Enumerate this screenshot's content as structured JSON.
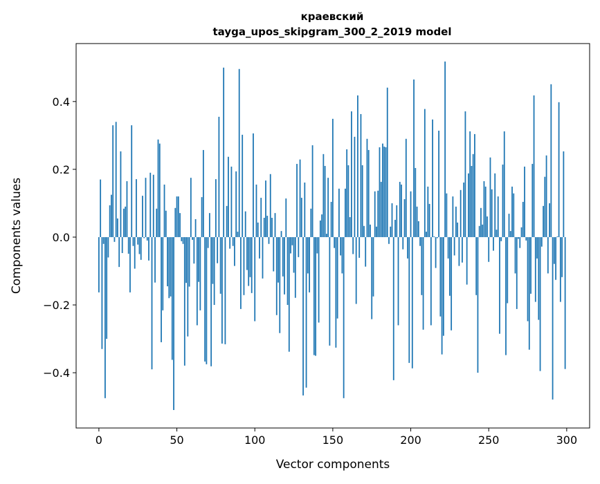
{
  "chart_data": {
    "type": "bar",
    "title": "краевский",
    "subtitle": "tayga_upos_skipgram_300_2_2019 model",
    "xlabel": "Vector components",
    "ylabel": "Components values",
    "xlim": [
      -14.6,
      314.7
    ],
    "ylim": [
      -0.563,
      0.571
    ],
    "xticks": [
      0,
      50,
      100,
      150,
      200,
      250,
      300
    ],
    "xtick_labels": [
      "0",
      "50",
      "100",
      "150",
      "200",
      "250",
      "300"
    ],
    "yticks": [
      -0.4,
      -0.2,
      0.0,
      0.2,
      0.4
    ],
    "ytick_labels": [
      "−0.4",
      "−0.2",
      "0.0",
      "0.2",
      "0.4"
    ],
    "grid": false,
    "bar_color": "#1f77b4",
    "values": [
      -0.163,
      0.17,
      -0.33,
      -0.02,
      -0.475,
      -0.3,
      -0.06,
      0.094,
      0.125,
      0.33,
      -0.014,
      0.34,
      0.055,
      -0.088,
      0.253,
      -0.047,
      0.084,
      0.09,
      0.165,
      -0.049,
      -0.163,
      0.33,
      -0.026,
      -0.093,
      0.171,
      -0.022,
      -0.05,
      -0.067,
      0.122,
      -0.003,
      0.175,
      -0.01,
      -0.069,
      0.19,
      -0.39,
      0.184,
      -0.134,
      0.084,
      0.288,
      0.276,
      -0.31,
      -0.216,
      0.155,
      0.078,
      -0.145,
      -0.18,
      -0.175,
      -0.362,
      -0.51,
      0.086,
      0.12,
      0.12,
      0.071,
      -0.012,
      -0.02,
      -0.379,
      -0.135,
      -0.293,
      -0.146,
      0.175,
      -0.008,
      -0.078,
      0.053,
      -0.26,
      -0.132,
      -0.216,
      0.118,
      0.257,
      -0.367,
      -0.375,
      -0.032,
      0.071,
      -0.381,
      -0.138,
      -0.2,
      0.171,
      -0.077,
      0.355,
      -0.167,
      -0.314,
      0.5,
      -0.316,
      0.092,
      0.237,
      -0.034,
      0.208,
      -0.026,
      -0.085,
      0.194,
      0.016,
      0.496,
      -0.212,
      0.302,
      -0.171,
      0.076,
      -0.097,
      -0.144,
      -0.118,
      -0.165,
      0.306,
      -0.248,
      0.155,
      0.043,
      -0.063,
      0.116,
      -0.122,
      0.057,
      0.167,
      0.063,
      -0.02,
      0.186,
      0.057,
      -0.101,
      0.071,
      -0.23,
      -0.134,
      -0.283,
      0.018,
      -0.116,
      -0.169,
      0.114,
      -0.2,
      -0.338,
      -0.048,
      -0.024,
      -0.105,
      -0.179,
      0.216,
      -0.059,
      0.229,
      0.116,
      -0.467,
      0.161,
      -0.444,
      -0.107,
      -0.163,
      0.084,
      0.271,
      -0.348,
      -0.35,
      -0.048,
      -0.252,
      0.049,
      0.067,
      0.245,
      0.21,
      0.01,
      0.175,
      -0.32,
      0.104,
      0.349,
      -0.032,
      -0.326,
      -0.24,
      0.143,
      -0.054,
      -0.107,
      -0.475,
      0.143,
      0.259,
      0.212,
      0.059,
      0.371,
      -0.05,
      0.296,
      -0.197,
      0.418,
      -0.061,
      0.363,
      0.212,
      0.033,
      -0.087,
      0.29,
      0.257,
      0.037,
      -0.242,
      -0.175,
      0.135,
      0.031,
      0.137,
      0.265,
      0.163,
      0.276,
      0.267,
      0.265,
      0.441,
      -0.02,
      0.031,
      0.1,
      -0.422,
      0.051,
      0.094,
      -0.26,
      0.163,
      0.155,
      -0.036,
      0.112,
      0.29,
      -0.063,
      -0.371,
      0.135,
      -0.387,
      0.465,
      0.204,
      0.09,
      0.047,
      -0.026,
      -0.171,
      -0.273,
      0.378,
      0.016,
      0.149,
      0.098,
      -0.26,
      0.347,
      0.002,
      -0.091,
      -0.003,
      0.314,
      -0.234,
      -0.346,
      -0.291,
      0.518,
      0.129,
      -0.063,
      -0.173,
      -0.275,
      0.12,
      -0.054,
      0.09,
      0.043,
      -0.085,
      0.139,
      -0.075,
      0.161,
      0.371,
      -0.14,
      0.188,
      0.312,
      0.21,
      0.245,
      0.304,
      -0.171,
      -0.4,
      0.033,
      0.086,
      0.037,
      0.165,
      0.149,
      0.061,
      -0.073,
      0.235,
      0.141,
      -0.04,
      0.188,
      0.022,
      0.12,
      -0.285,
      -0.012,
      0.214,
      0.312,
      -0.348,
      -0.195,
      0.069,
      0.018,
      0.149,
      0.129,
      -0.107,
      -0.212,
      -0.005,
      -0.032,
      0.029,
      0.104,
      0.208,
      -0.01,
      -0.248,
      -0.332,
      -0.167,
      0.216,
      0.418,
      -0.191,
      -0.063,
      -0.244,
      -0.395,
      -0.028,
      0.092,
      0.178,
      0.241,
      -0.107,
      0.1,
      0.451,
      -0.479,
      -0.079,
      -0.126,
      0.002,
      0.398,
      -0.191,
      -0.118,
      0.253,
      -0.389
    ]
  }
}
